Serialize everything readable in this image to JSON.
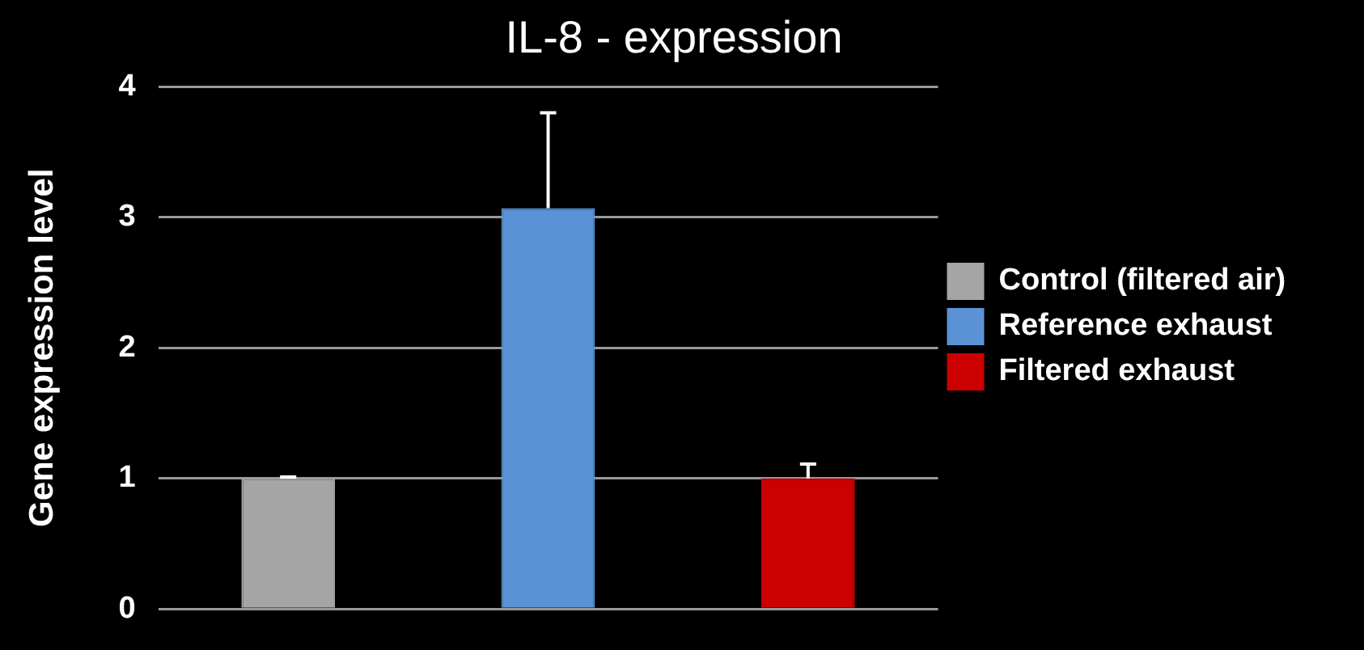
{
  "chart_data": {
    "type": "bar",
    "title": "IL-8 - expression",
    "ylabel": "Gene expression level",
    "categories": [
      null,
      null,
      null
    ],
    "series": [
      {
        "name": "Control (filtered air)",
        "color": "#a5a5a5",
        "values": [
          1,
          null,
          null
        ],
        "errors": [
          [
            1,
            1.01
          ],
          null,
          null
        ]
      },
      {
        "name": "Reference exhaust",
        "color": "#5b92d6",
        "values": [
          null,
          3.07,
          null
        ],
        "errors": [
          null,
          [
            3.07,
            3.8
          ],
          null
        ]
      },
      {
        "name": "Filtered exhaust",
        "color": "#cc0000",
        "values": [
          null,
          null,
          1
        ],
        "errors": [
          null,
          null,
          [
            1,
            1.11
          ]
        ]
      }
    ],
    "ylim": [
      0,
      4
    ],
    "yticks": [
      0,
      1,
      2,
      3,
      4
    ],
    "grid": "y",
    "legend": "right"
  }
}
